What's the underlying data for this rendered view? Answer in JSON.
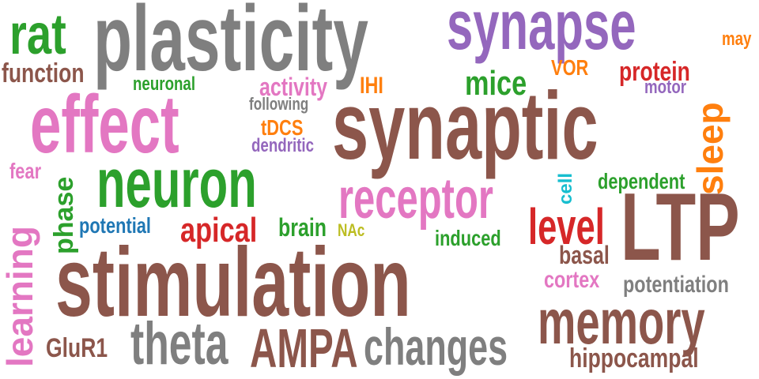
{
  "colors": {
    "brown": "#8c564b",
    "gray": "#7f7f7f",
    "purple": "#9467bd",
    "green": "#2ca02c",
    "pink": "#e377c2",
    "orange": "#ff7f0e",
    "red": "#d62728",
    "blue": "#1f77b4",
    "cyan": "#17becf",
    "olive": "#bcbd22"
  },
  "words": {
    "plasticity": "plasticity",
    "synapse": "synapse",
    "rat": "rat",
    "may": "may",
    "function": "function",
    "neuronal": "neuronal",
    "activity": "activity",
    "ihi": "IHI",
    "vor": "VOR",
    "protein": "protein",
    "mice": "mice",
    "motor": "motor",
    "following": "following",
    "effect": "effect",
    "tdcs": "tDCS",
    "dendritic": "dendritic",
    "synaptic": "synaptic",
    "sleep": "sleep",
    "fear": "fear",
    "phase": "phase",
    "neuron": "neuron",
    "receptor": "receptor",
    "cell": "cell",
    "dependent": "dependent",
    "learning": "learning",
    "potential": "potential",
    "apical": "apical",
    "brain": "brain",
    "nac": "NAc",
    "level": "level",
    "ltp": "LTP",
    "induced": "induced",
    "basal": "basal",
    "stimulation": "stimulation",
    "cortex": "cortex",
    "potentiation": "potentiation",
    "memory": "memory",
    "glur1": "GluR1",
    "theta": "theta",
    "ampa": "AMPA",
    "changes": "changes",
    "hippocampal": "hippocampal"
  }
}
